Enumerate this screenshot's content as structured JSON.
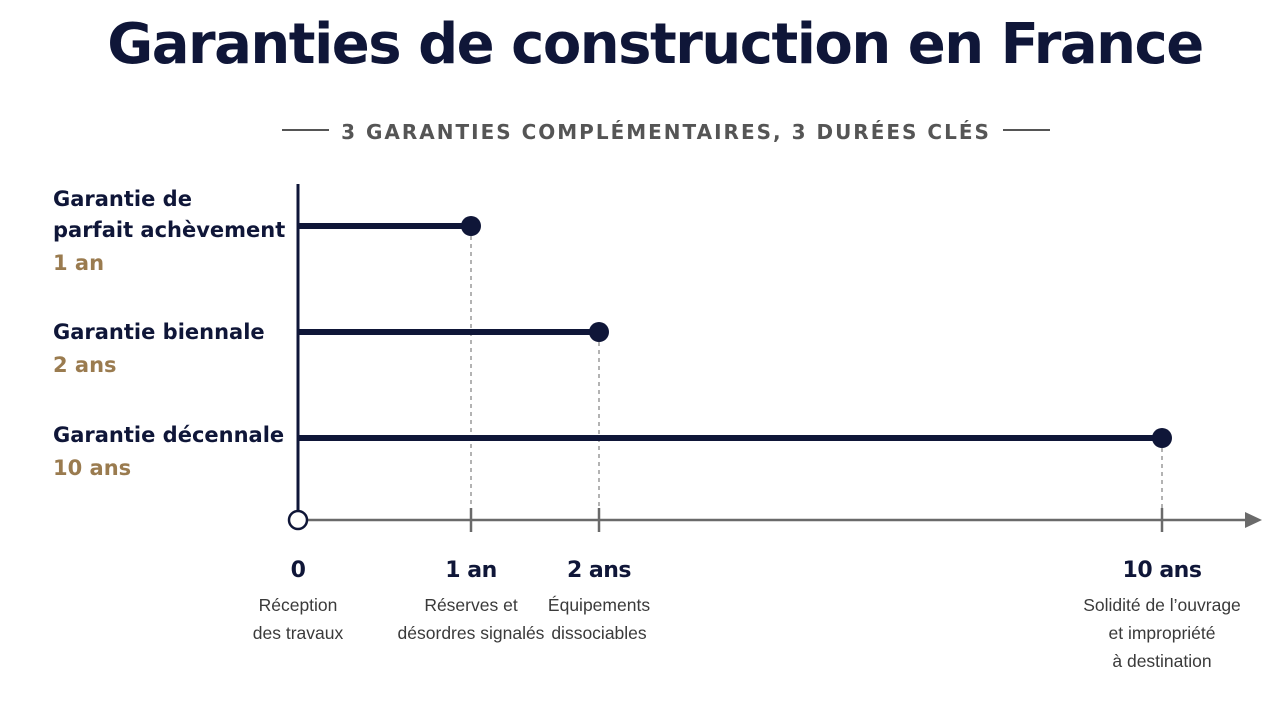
{
  "title": "Garanties de construction en France",
  "subtitle": "3 GARANTIES COMPLÉMENTAIRES, 3 DURÉES CLÉS",
  "colors": {
    "navy": "#0f1638",
    "gold": "#9a7b4f",
    "axis_gray": "#6a6a6a",
    "text_gray": "#3a3a3a"
  },
  "chart_data": {
    "type": "timeline-bar",
    "title": "Garanties de construction en France",
    "subtitle": "3 GARANTIES COMPLÉMENTAIRES, 3 DURÉES CLÉS",
    "x_unit": "années",
    "ticks": [
      {
        "value": 0,
        "label": "0",
        "description": [
          "Réception",
          "des travaux"
        ]
      },
      {
        "value": 1,
        "label": "1 an",
        "description": [
          "Réserves et",
          "désordres signalés"
        ]
      },
      {
        "value": 2,
        "label": "2 ans",
        "description": [
          "Équipements",
          "dissociables"
        ]
      },
      {
        "value": 10,
        "label": "10 ans",
        "description": [
          "Solidité de l’ouvrage",
          "et impropriété",
          "à destination"
        ]
      }
    ],
    "bars": [
      {
        "name_lines": [
          "Garantie de",
          "parfait achèvement"
        ],
        "duration_label": "1 an",
        "start": 0,
        "end": 1
      },
      {
        "name_lines": [
          "Garantie biennale"
        ],
        "duration_label": "2 ans",
        "start": 0,
        "end": 2
      },
      {
        "name_lines": [
          "Garantie décennale"
        ],
        "duration_label": "10 ans",
        "start": 0,
        "end": 10
      }
    ]
  }
}
